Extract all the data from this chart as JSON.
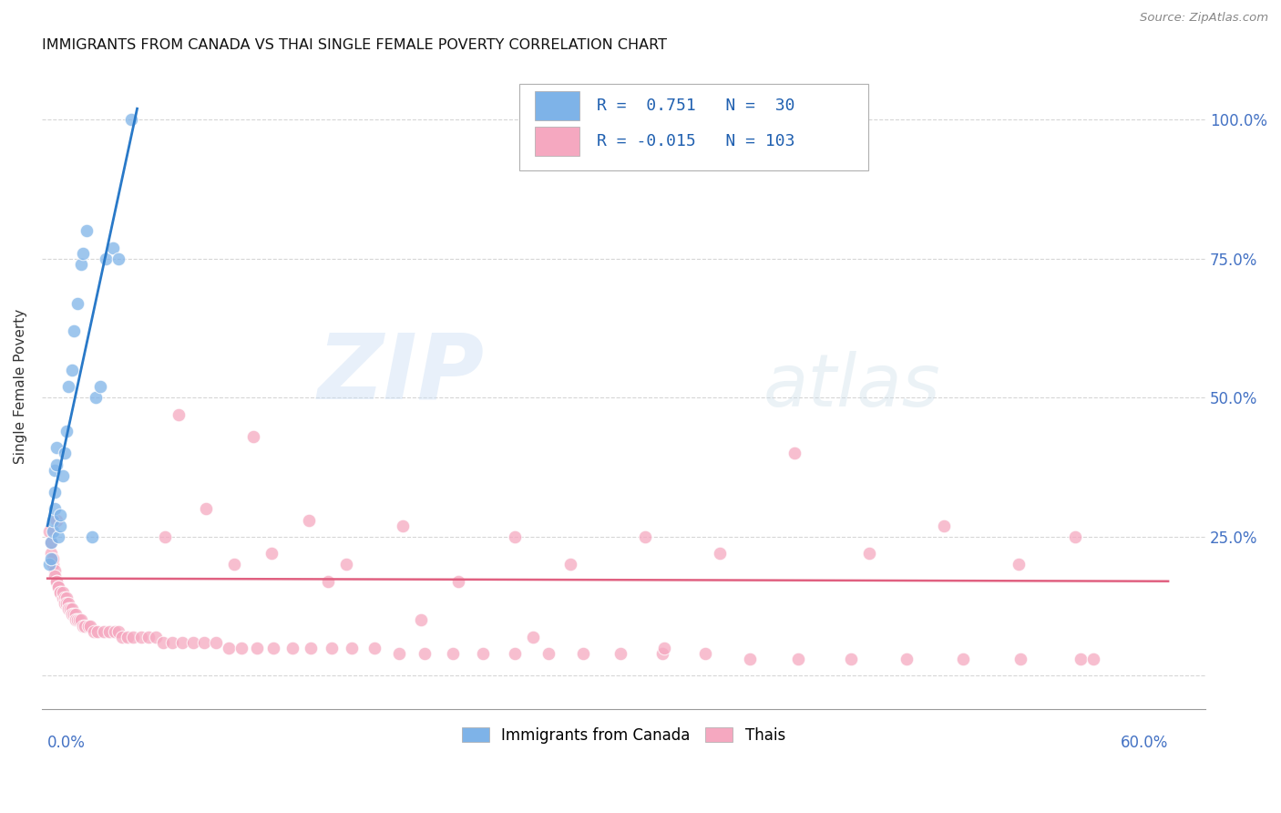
{
  "title": "IMMIGRANTS FROM CANADA VS THAI SINGLE FEMALE POVERTY CORRELATION CHART",
  "source": "Source: ZipAtlas.com",
  "ylabel": "Single Female Poverty",
  "legend_blue_R": "0.751",
  "legend_blue_N": "30",
  "legend_pink_R": "-0.015",
  "legend_pink_N": "103",
  "blue_color": "#7eb3e8",
  "pink_color": "#f5a8c0",
  "blue_line_color": "#2979c8",
  "pink_line_color": "#e06080",
  "blue_points_x": [
    0.001,
    0.002,
    0.002,
    0.003,
    0.003,
    0.004,
    0.004,
    0.004,
    0.005,
    0.005,
    0.006,
    0.007,
    0.007,
    0.008,
    0.009,
    0.01,
    0.011,
    0.013,
    0.014,
    0.016,
    0.018,
    0.019,
    0.021,
    0.024,
    0.026,
    0.028,
    0.031,
    0.035,
    0.038,
    0.045
  ],
  "blue_points_y": [
    0.2,
    0.21,
    0.24,
    0.26,
    0.28,
    0.3,
    0.33,
    0.37,
    0.38,
    0.41,
    0.25,
    0.27,
    0.29,
    0.36,
    0.4,
    0.44,
    0.52,
    0.55,
    0.62,
    0.67,
    0.74,
    0.76,
    0.8,
    0.25,
    0.5,
    0.52,
    0.75,
    0.77,
    0.75,
    1.0
  ],
  "pink_points_x": [
    0.001,
    0.002,
    0.002,
    0.003,
    0.003,
    0.004,
    0.004,
    0.005,
    0.005,
    0.005,
    0.006,
    0.006,
    0.007,
    0.007,
    0.008,
    0.008,
    0.009,
    0.009,
    0.01,
    0.01,
    0.011,
    0.011,
    0.012,
    0.013,
    0.013,
    0.014,
    0.015,
    0.015,
    0.016,
    0.017,
    0.018,
    0.019,
    0.02,
    0.022,
    0.023,
    0.025,
    0.027,
    0.03,
    0.033,
    0.036,
    0.038,
    0.04,
    0.043,
    0.046,
    0.05,
    0.054,
    0.058,
    0.062,
    0.067,
    0.072,
    0.078,
    0.084,
    0.09,
    0.097,
    0.104,
    0.112,
    0.121,
    0.131,
    0.141,
    0.152,
    0.163,
    0.175,
    0.188,
    0.202,
    0.217,
    0.233,
    0.25,
    0.268,
    0.287,
    0.307,
    0.329,
    0.352,
    0.376,
    0.402,
    0.43,
    0.46,
    0.49,
    0.521,
    0.553,
    0.56,
    0.063,
    0.085,
    0.1,
    0.12,
    0.14,
    0.16,
    0.19,
    0.22,
    0.25,
    0.28,
    0.32,
    0.36,
    0.4,
    0.44,
    0.48,
    0.52,
    0.55,
    0.07,
    0.11,
    0.15,
    0.2,
    0.26,
    0.33
  ],
  "pink_points_y": [
    0.26,
    0.22,
    0.24,
    0.2,
    0.21,
    0.19,
    0.18,
    0.17,
    0.17,
    0.28,
    0.16,
    0.16,
    0.15,
    0.15,
    0.14,
    0.15,
    0.14,
    0.13,
    0.14,
    0.13,
    0.13,
    0.12,
    0.12,
    0.12,
    0.11,
    0.11,
    0.11,
    0.1,
    0.1,
    0.1,
    0.1,
    0.09,
    0.09,
    0.09,
    0.09,
    0.08,
    0.08,
    0.08,
    0.08,
    0.08,
    0.08,
    0.07,
    0.07,
    0.07,
    0.07,
    0.07,
    0.07,
    0.06,
    0.06,
    0.06,
    0.06,
    0.06,
    0.06,
    0.05,
    0.05,
    0.05,
    0.05,
    0.05,
    0.05,
    0.05,
    0.05,
    0.05,
    0.04,
    0.04,
    0.04,
    0.04,
    0.04,
    0.04,
    0.04,
    0.04,
    0.04,
    0.04,
    0.03,
    0.03,
    0.03,
    0.03,
    0.03,
    0.03,
    0.03,
    0.03,
    0.25,
    0.3,
    0.2,
    0.22,
    0.28,
    0.2,
    0.27,
    0.17,
    0.25,
    0.2,
    0.25,
    0.22,
    0.4,
    0.22,
    0.27,
    0.2,
    0.25,
    0.47,
    0.43,
    0.17,
    0.1,
    0.07,
    0.05
  ],
  "blue_line_x": [
    0.0,
    0.048
  ],
  "blue_line_y": [
    0.27,
    1.02
  ],
  "pink_line_x": [
    0.0,
    0.6
  ],
  "pink_line_y": [
    0.175,
    0.17
  ],
  "xlim": [
    -0.003,
    0.62
  ],
  "ylim": [
    -0.06,
    1.1
  ],
  "yticks": [
    0.0,
    0.25,
    0.5,
    0.75,
    1.0
  ],
  "ytick_right_labels": [
    "",
    "25.0%",
    "50.0%",
    "75.0%",
    "100.0%"
  ]
}
